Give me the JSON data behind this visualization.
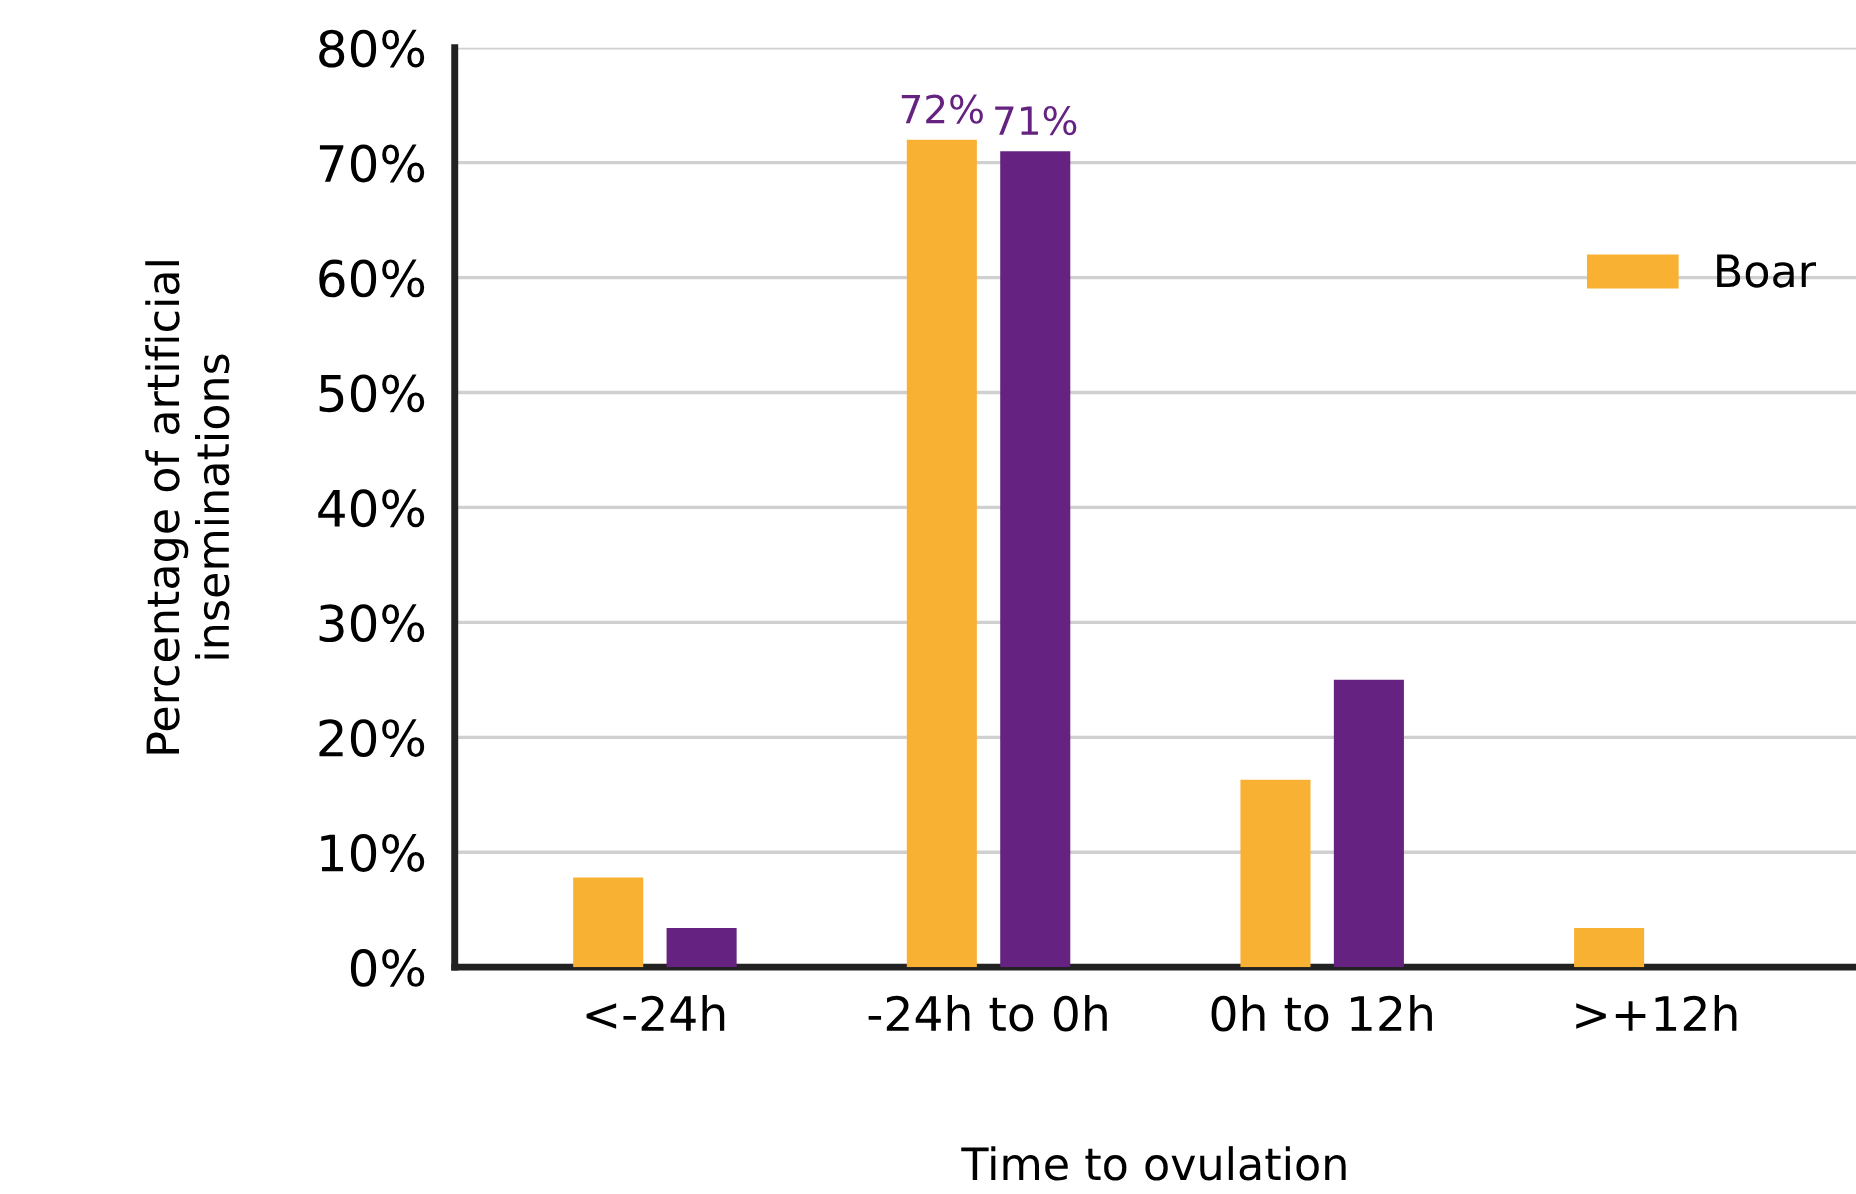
{
  "chart_data": {
    "type": "bar",
    "xlabel": "Time to ovulation",
    "ylabel": "Percentage of artificial\ninseminations",
    "categories": [
      "<-24h",
      "-24h to 0h",
      "0h to 12h",
      ">+12h"
    ],
    "series": [
      {
        "name": "Boar",
        "color": "#f9b133",
        "values": [
          7.8,
          72,
          16.3,
          3.4
        ],
        "value_labels": [
          null,
          "72%",
          null,
          null
        ]
      },
      {
        "color": "#652281",
        "values": [
          3.4,
          71,
          25,
          0
        ],
        "value_labels": [
          null,
          "71%",
          null,
          null
        ]
      }
    ],
    "ylim": [
      0,
      80
    ],
    "yticks": [
      {
        "value": 0,
        "label": "0%"
      },
      {
        "value": 10,
        "label": "10%"
      },
      {
        "value": 20,
        "label": "20%"
      },
      {
        "value": 30,
        "label": "30%"
      },
      {
        "value": 40,
        "label": "40%"
      },
      {
        "value": 50,
        "label": "50%"
      },
      {
        "value": 60,
        "label": "60%"
      },
      {
        "value": 70,
        "label": "70%"
      },
      {
        "value": 80,
        "label": "80%"
      }
    ],
    "grid": "y",
    "legend": "top right"
  }
}
